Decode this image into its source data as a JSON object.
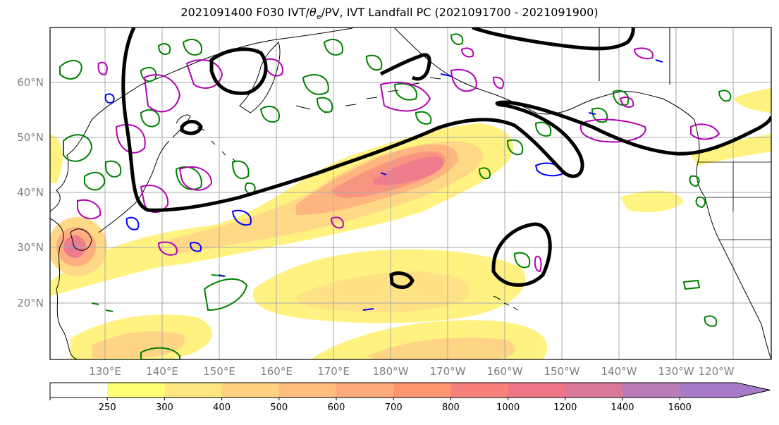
{
  "title": {
    "prefix": "2021091400 F030 IVT/",
    "theta": "θ",
    "theta_sub": "e",
    "suffix": "/PV, IVT Landfall PC (2021091700 - 2021091900)"
  },
  "map": {
    "lat_labels": [
      "60°N",
      "50°N",
      "40°N",
      "30°N",
      "20°N"
    ],
    "lon_labels": [
      "130°E",
      "140°E",
      "150°E",
      "160°E",
      "170°E",
      "180°W",
      "170°W",
      "160°W",
      "150°W",
      "140°W",
      "130°W",
      "120°W"
    ]
  },
  "colorbar": {
    "ticks": [
      "250",
      "300",
      "400",
      "500",
      "600",
      "700",
      "800",
      "1000",
      "1200",
      "1400",
      "1600"
    ],
    "colors": [
      "#ffffff",
      "#ffff73",
      "#ffe680",
      "#ffd27f",
      "#ffbe7f",
      "#ffaa7a",
      "#ff9570",
      "#f8807a",
      "#ee7585",
      "#d97898",
      "#b97cb8",
      "#a77bc8"
    ]
  },
  "legend_colors": {
    "theta_e": "#008000",
    "pv_high": "#b400b4",
    "pv_low": "#0000ff",
    "landfall_pc": "#000000"
  }
}
